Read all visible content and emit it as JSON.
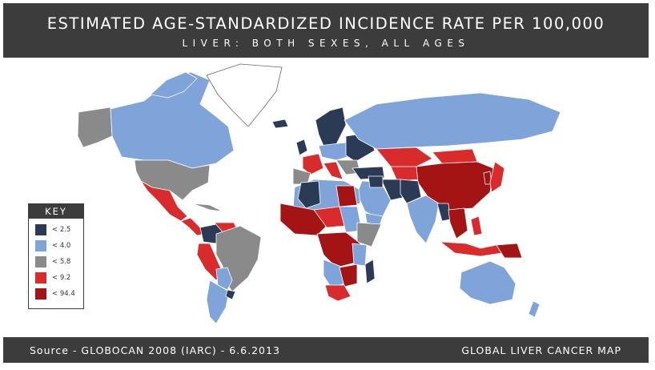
{
  "header": {
    "title": "ESTIMATED AGE-STANDARDIZED INCIDENCE RATE PER 100,000",
    "subtitle": "LIVER: BOTH SEXES, ALL AGES"
  },
  "legend": {
    "title": "KEY",
    "items": [
      {
        "label": "< 2.5",
        "color": "#2b3a55"
      },
      {
        "label": "< 4.0",
        "color": "#7ea4d9"
      },
      {
        "label": "< 5.8",
        "color": "#8a8a8a"
      },
      {
        "label": "< 9.2",
        "color": "#d92b2b"
      },
      {
        "label": "< 94.4",
        "color": "#a51414"
      }
    ]
  },
  "footer": {
    "source": "Source - GLOBOCAN 2008 (IARC) - 6.6.2013",
    "title": "GLOBAL LIVER CANCER MAP"
  },
  "colors": {
    "band": "#3c3c3c",
    "no_data": "#ffffff"
  }
}
